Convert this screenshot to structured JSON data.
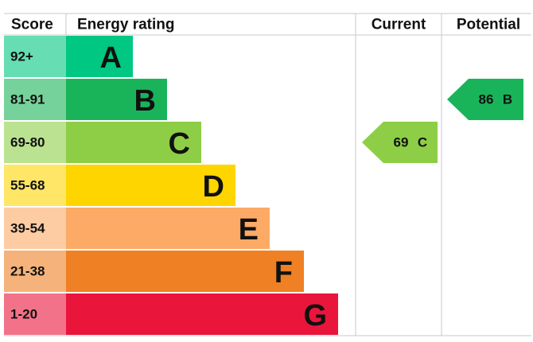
{
  "header": {
    "score": "Score",
    "rating": "Energy rating",
    "current": "Current",
    "potential": "Potential"
  },
  "bands": [
    {
      "score": "92+",
      "letter": "A",
      "color": "#00c781"
    },
    {
      "score": "81-91",
      "letter": "B",
      "color": "#19b459"
    },
    {
      "score": "69-80",
      "letter": "C",
      "color": "#8dce46"
    },
    {
      "score": "55-68",
      "letter": "D",
      "color": "#ffd500"
    },
    {
      "score": "39-54",
      "letter": "E",
      "color": "#fcaa65"
    },
    {
      "score": "21-38",
      "letter": "F",
      "color": "#ef8023"
    },
    {
      "score": "1-20",
      "letter": "G",
      "color": "#e9153b"
    }
  ],
  "current": {
    "value": 69,
    "letter": "C"
  },
  "potential": {
    "value": 86,
    "letter": "B"
  }
}
